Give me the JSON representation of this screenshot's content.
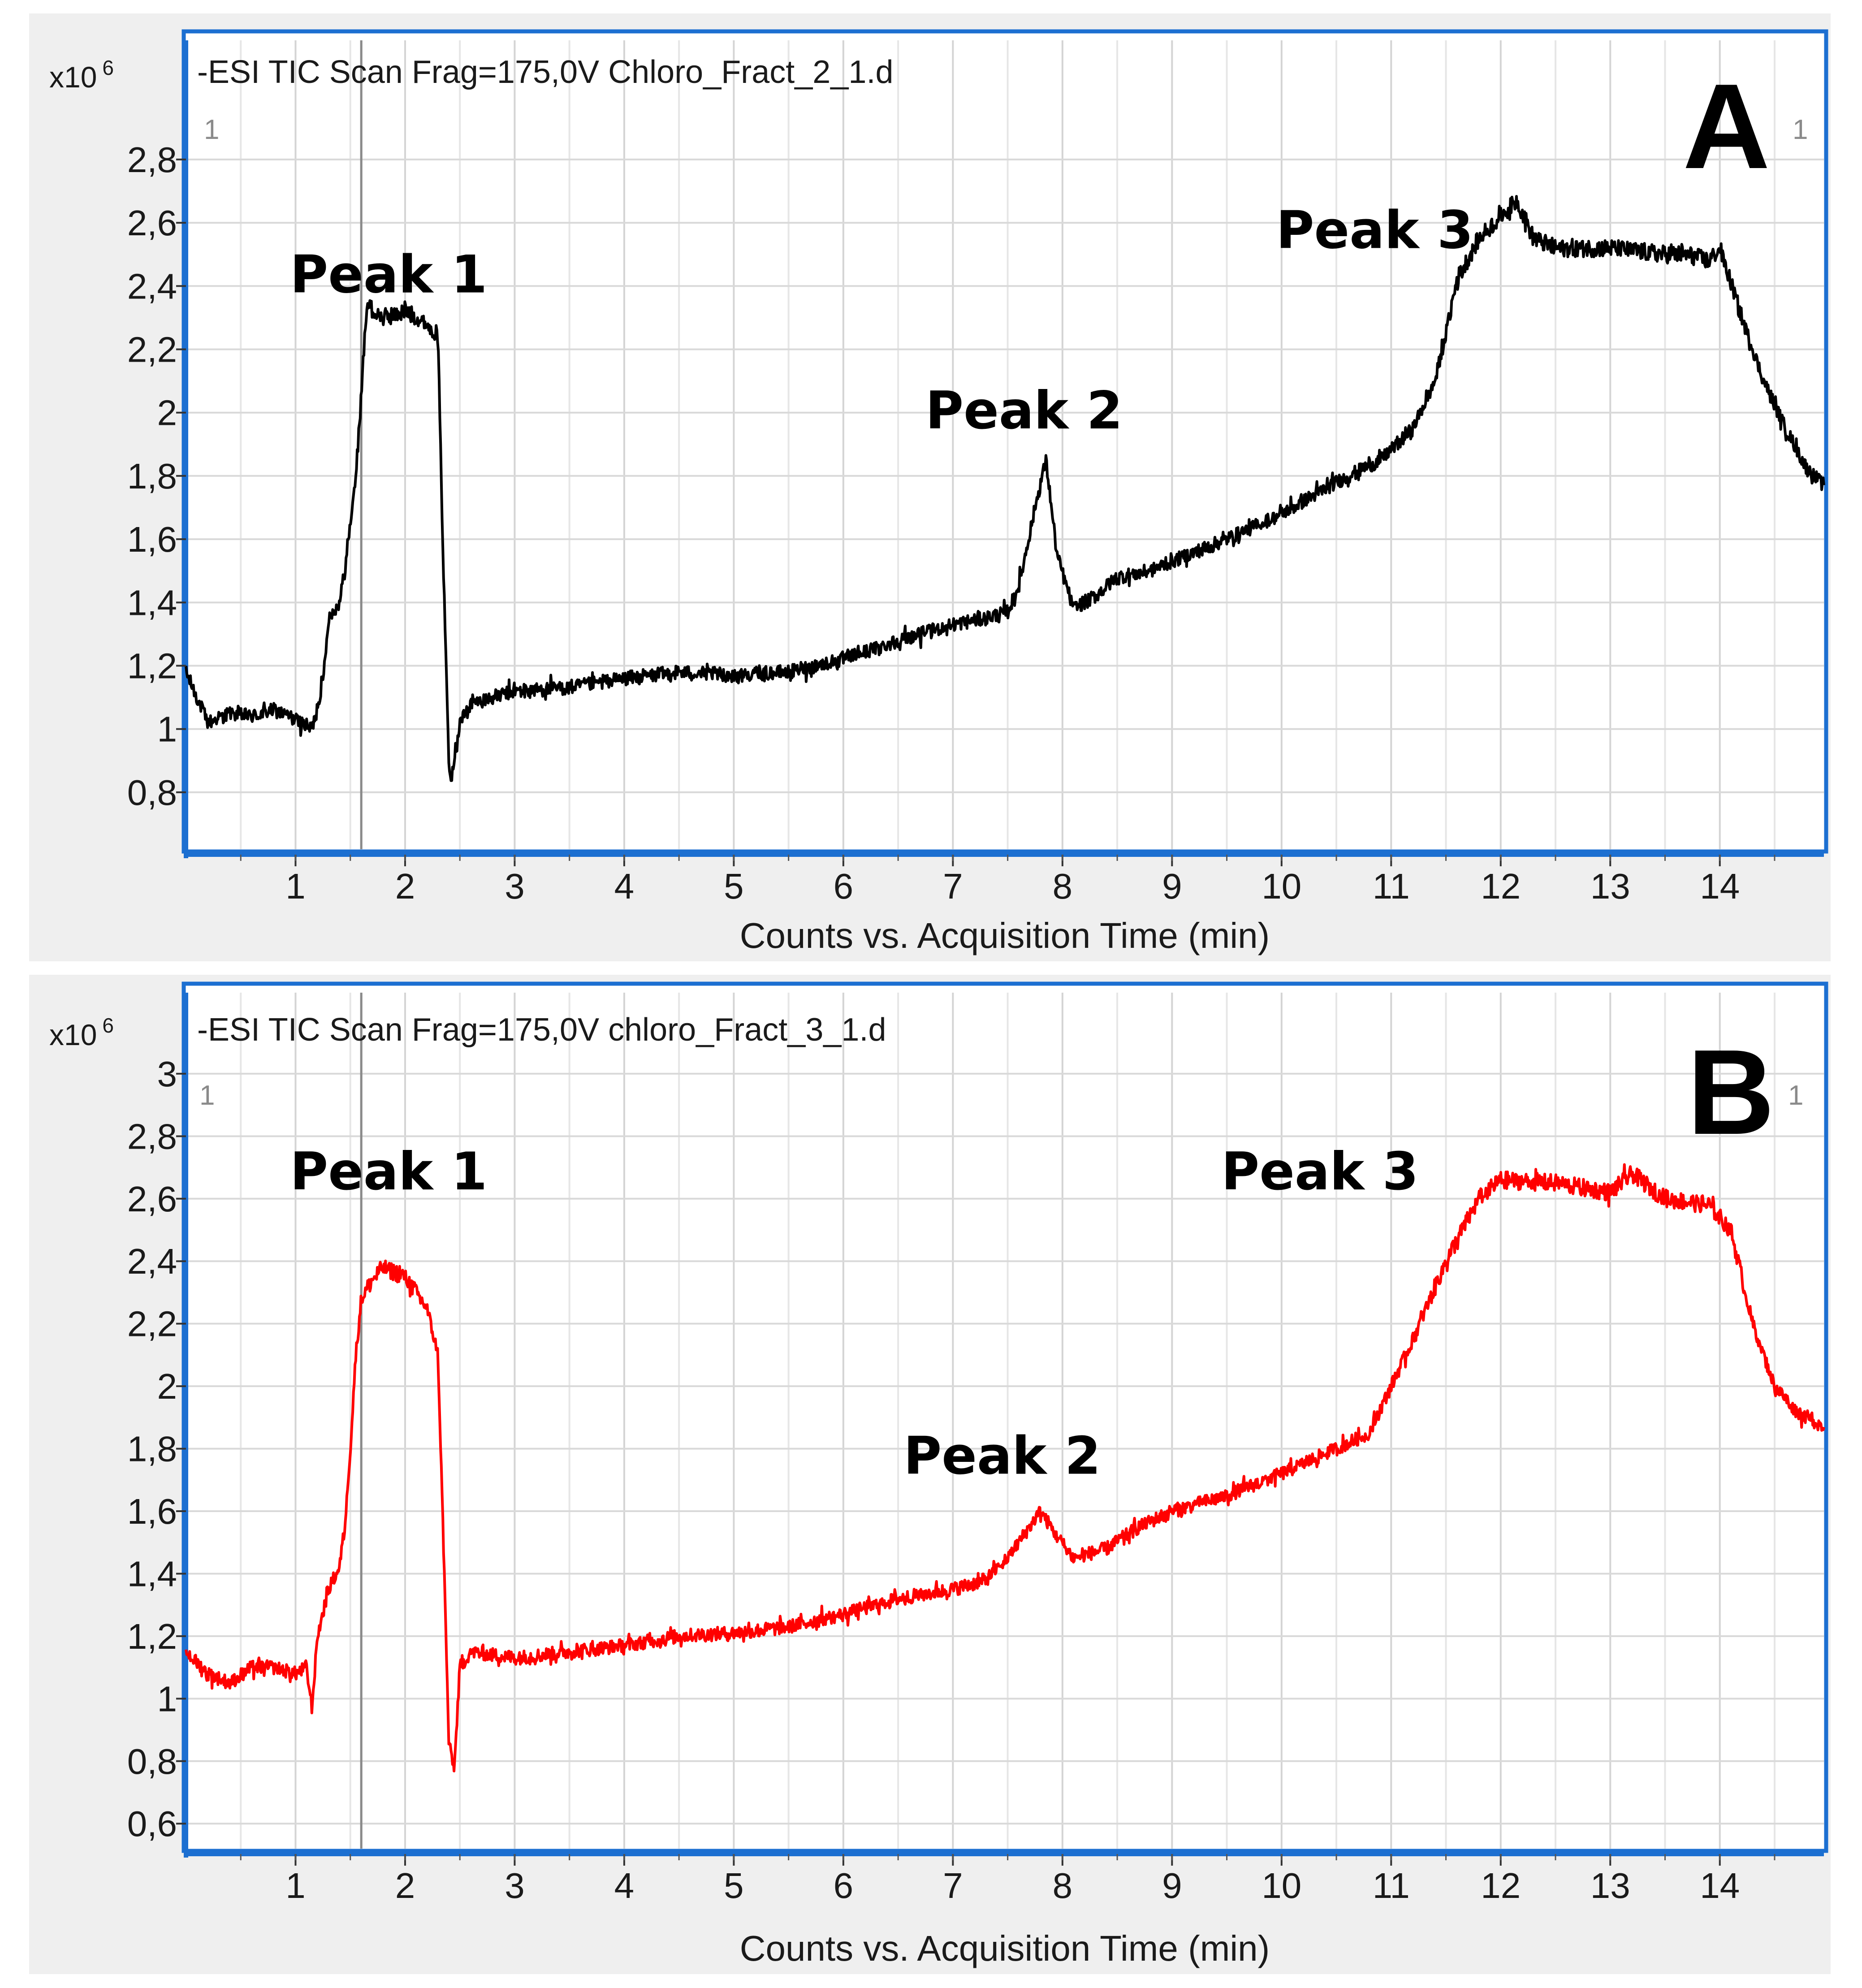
{
  "chart_data": [
    {
      "type": "line",
      "panel_label": "A",
      "title": "-ESI TIC Scan Frag=175,0V Chloro_Fract_2_1.d",
      "xlabel": "Counts vs. Acquisition Time (min)",
      "ylabel": "",
      "y_multiplier": "x10",
      "y_multiplier_exp": "6",
      "corner_left": "1",
      "corner_right": "1",
      "xlim": [
        0,
        14.95
      ],
      "ylim": [
        0.62,
        2.95
      ],
      "x_ticks": [
        1,
        2,
        3,
        4,
        5,
        6,
        7,
        8,
        9,
        10,
        11,
        12,
        13,
        14
      ],
      "x_tick_labels": [
        "1",
        "2",
        "3",
        "4",
        "5",
        "6",
        "7",
        "8",
        "9",
        "10",
        "11",
        "12",
        "13",
        "14"
      ],
      "y_ticks": [
        0.8,
        1.0,
        1.2,
        1.4,
        1.6,
        1.8,
        2.0,
        2.2,
        2.4,
        2.6,
        2.8
      ],
      "y_tick_labels": [
        "0,8",
        "1",
        "1,2",
        "1,4",
        "1,6",
        "1,8",
        "2",
        "2,2",
        "2,4",
        "2,6",
        "2,8"
      ],
      "grid": true,
      "marker_line_x": 1.6,
      "line_color": "#000000",
      "series": [
        {
          "name": "",
          "x": [
            0.0,
            0.2,
            0.4,
            0.6,
            0.8,
            1.0,
            1.15,
            1.25,
            1.3,
            1.4,
            1.45,
            1.5,
            1.55,
            1.6,
            1.65,
            1.7,
            1.8,
            2.0,
            2.2,
            2.3,
            2.35,
            2.4,
            2.42,
            2.5,
            2.6,
            2.8,
            3.0,
            3.5,
            4.0,
            4.5,
            5.0,
            5.5,
            6.0,
            6.5,
            7.0,
            7.3,
            7.5,
            7.6,
            7.75,
            7.85,
            7.95,
            8.1,
            8.3,
            8.5,
            8.8,
            9.0,
            9.5,
            10.0,
            10.5,
            10.9,
            11.2,
            11.4,
            11.5,
            11.6,
            11.8,
            12.0,
            12.15,
            12.3,
            12.5,
            13.0,
            13.5,
            13.7,
            13.9,
            14.0,
            14.2,
            14.4,
            14.6,
            14.8,
            14.95
          ],
          "y": [
            1.18,
            1.02,
            1.05,
            1.04,
            1.06,
            1.03,
            1.0,
            1.15,
            1.35,
            1.4,
            1.5,
            1.65,
            1.8,
            2.05,
            2.35,
            2.32,
            2.3,
            2.32,
            2.28,
            2.24,
            1.5,
            0.9,
            0.85,
            1.02,
            1.08,
            1.1,
            1.12,
            1.13,
            1.16,
            1.18,
            1.17,
            1.18,
            1.22,
            1.28,
            1.33,
            1.35,
            1.37,
            1.45,
            1.7,
            1.85,
            1.55,
            1.38,
            1.42,
            1.48,
            1.5,
            1.53,
            1.6,
            1.68,
            1.78,
            1.85,
            1.95,
            2.1,
            2.25,
            2.42,
            2.55,
            2.62,
            2.67,
            2.55,
            2.52,
            2.52,
            2.5,
            2.5,
            2.48,
            2.52,
            2.3,
            2.1,
            1.95,
            1.82,
            1.77
          ]
        }
      ],
      "annotations": [
        {
          "text": "Peak 1",
          "x": 1.85,
          "y": 2.38
        },
        {
          "text": "Peak 2",
          "x": 7.65,
          "y": 1.95
        },
        {
          "text": "Peak 3",
          "x": 10.85,
          "y": 2.52
        }
      ]
    },
    {
      "type": "line",
      "panel_label": "B",
      "title": "-ESI TIC Scan Frag=175,0V chloro_Fract_3_1.d",
      "xlabel": "Counts vs. Acquisition Time (min)",
      "ylabel": "",
      "y_multiplier": "x10",
      "y_multiplier_exp": "6",
      "corner_left": "1",
      "corner_right": "1",
      "xlim": [
        0,
        14.95
      ],
      "ylim": [
        0.52,
        3.03
      ],
      "x_ticks": [
        1,
        2,
        3,
        4,
        5,
        6,
        7,
        8,
        9,
        10,
        11,
        12,
        13,
        14
      ],
      "x_tick_labels": [
        "1",
        "2",
        "3",
        "4",
        "5",
        "6",
        "7",
        "8",
        "9",
        "10",
        "11",
        "12",
        "13",
        "14"
      ],
      "y_ticks": [
        0.6,
        0.8,
        1.0,
        1.2,
        1.4,
        1.6,
        1.8,
        2.0,
        2.2,
        2.4,
        2.6,
        2.8,
        3.0
      ],
      "y_tick_labels": [
        "0,6",
        "0,8",
        "1",
        "1,2",
        "1,4",
        "1,6",
        "1,8",
        "2",
        "2,2",
        "2,4",
        "2,6",
        "2,8",
        "3"
      ],
      "grid": true,
      "marker_line_x": 1.6,
      "line_color": "#ff0000",
      "series": [
        {
          "name": "",
          "x": [
            0.0,
            0.2,
            0.4,
            0.6,
            0.8,
            1.0,
            1.1,
            1.15,
            1.2,
            1.3,
            1.4,
            1.45,
            1.5,
            1.55,
            1.6,
            1.7,
            1.8,
            2.0,
            2.2,
            2.3,
            2.35,
            2.4,
            2.45,
            2.5,
            2.6,
            3.0,
            3.5,
            4.0,
            4.5,
            5.0,
            5.5,
            6.0,
            6.5,
            7.0,
            7.3,
            7.5,
            7.7,
            7.8,
            7.95,
            8.1,
            8.4,
            8.7,
            9.0,
            9.5,
            10.0,
            10.5,
            10.8,
            11.0,
            11.2,
            11.5,
            11.8,
            12.0,
            12.5,
            13.0,
            13.2,
            13.5,
            13.9,
            14.1,
            14.3,
            14.5,
            14.7,
            14.95
          ],
          "y": [
            1.15,
            1.08,
            1.05,
            1.1,
            1.1,
            1.08,
            1.1,
            0.97,
            1.2,
            1.35,
            1.42,
            1.55,
            1.8,
            2.1,
            2.28,
            2.34,
            2.38,
            2.35,
            2.25,
            2.1,
            1.5,
            0.85,
            0.78,
            1.1,
            1.15,
            1.13,
            1.15,
            1.17,
            1.2,
            1.21,
            1.23,
            1.27,
            1.32,
            1.35,
            1.38,
            1.45,
            1.55,
            1.6,
            1.52,
            1.45,
            1.48,
            1.55,
            1.6,
            1.65,
            1.72,
            1.8,
            1.85,
            2.0,
            2.15,
            2.4,
            2.6,
            2.66,
            2.65,
            2.62,
            2.68,
            2.6,
            2.58,
            2.5,
            2.2,
            2.0,
            1.92,
            1.87
          ]
        }
      ],
      "annotations": [
        {
          "text": "Peak 1",
          "x": 1.85,
          "y": 2.63
        },
        {
          "text": "Peak 2",
          "x": 7.45,
          "y": 1.72
        },
        {
          "text": "Peak 3",
          "x": 10.35,
          "y": 2.63
        }
      ]
    }
  ]
}
